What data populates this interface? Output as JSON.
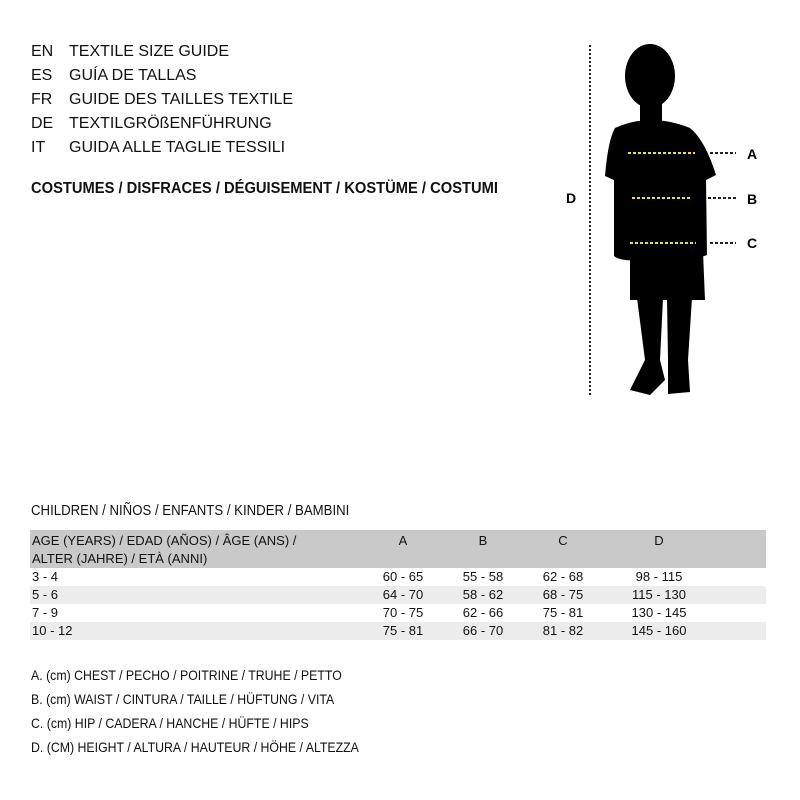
{
  "languages": [
    {
      "code": "EN",
      "title": "TEXTILE SIZE GUIDE"
    },
    {
      "code": "ES",
      "title": "GUÍA DE TALLAS"
    },
    {
      "code": "FR",
      "title": "GUIDE DES TAILLES TEXTILE"
    },
    {
      "code": "DE",
      "title": "TEXTILGRÖßENFÜHRUNG"
    },
    {
      "code": "IT",
      "title": "GUIDA ALLE TAGLIE TESSILI"
    }
  ],
  "category": "COSTUMES / DISFRACES / DÉGUISEMENT / KOSTÜME / COSTUMI",
  "figure": {
    "label_a": "A",
    "label_b": "B",
    "label_c": "C",
    "label_d": "D",
    "guide_color": "#e8e04a"
  },
  "table": {
    "caption": "CHILDREN / NIÑOS / ENFANTS / KINDER / BAMBINI",
    "age_header_1": "AGE (YEARS) / EDAD (AÑOS) / ÂGE (ANS) /",
    "age_header_2": "ALTER (JAHRE) / ETÀ (ANNI)",
    "columns": [
      "A",
      "B",
      "C",
      "D"
    ],
    "rows": [
      [
        "3 - 4",
        "60 - 65",
        "55 - 58",
        "62 - 68",
        "98 - 115"
      ],
      [
        "5 - 6",
        "64 - 70",
        "58 - 62",
        "68 - 75",
        "115 - 130"
      ],
      [
        "7 - 9",
        "70 - 75",
        "62 - 66",
        "75 - 81",
        "130 - 145"
      ],
      [
        "10 - 12",
        "75 - 81",
        "66 - 70",
        "81 - 82",
        "145 - 160"
      ]
    ]
  },
  "legend": [
    "A. (cm) CHEST / PECHO / POITRINE / TRUHE / PETTO",
    "B. (cm) WAIST / CINTURA / TAILLE / HÜFTUNG / VITA",
    "C. (cm) HIP / CADERA / HANCHE / HÜFTE / HIPS",
    "D. (CM) HEIGHT / ALTURA / HAUTEUR / HÖHE / ALTEZZA"
  ]
}
